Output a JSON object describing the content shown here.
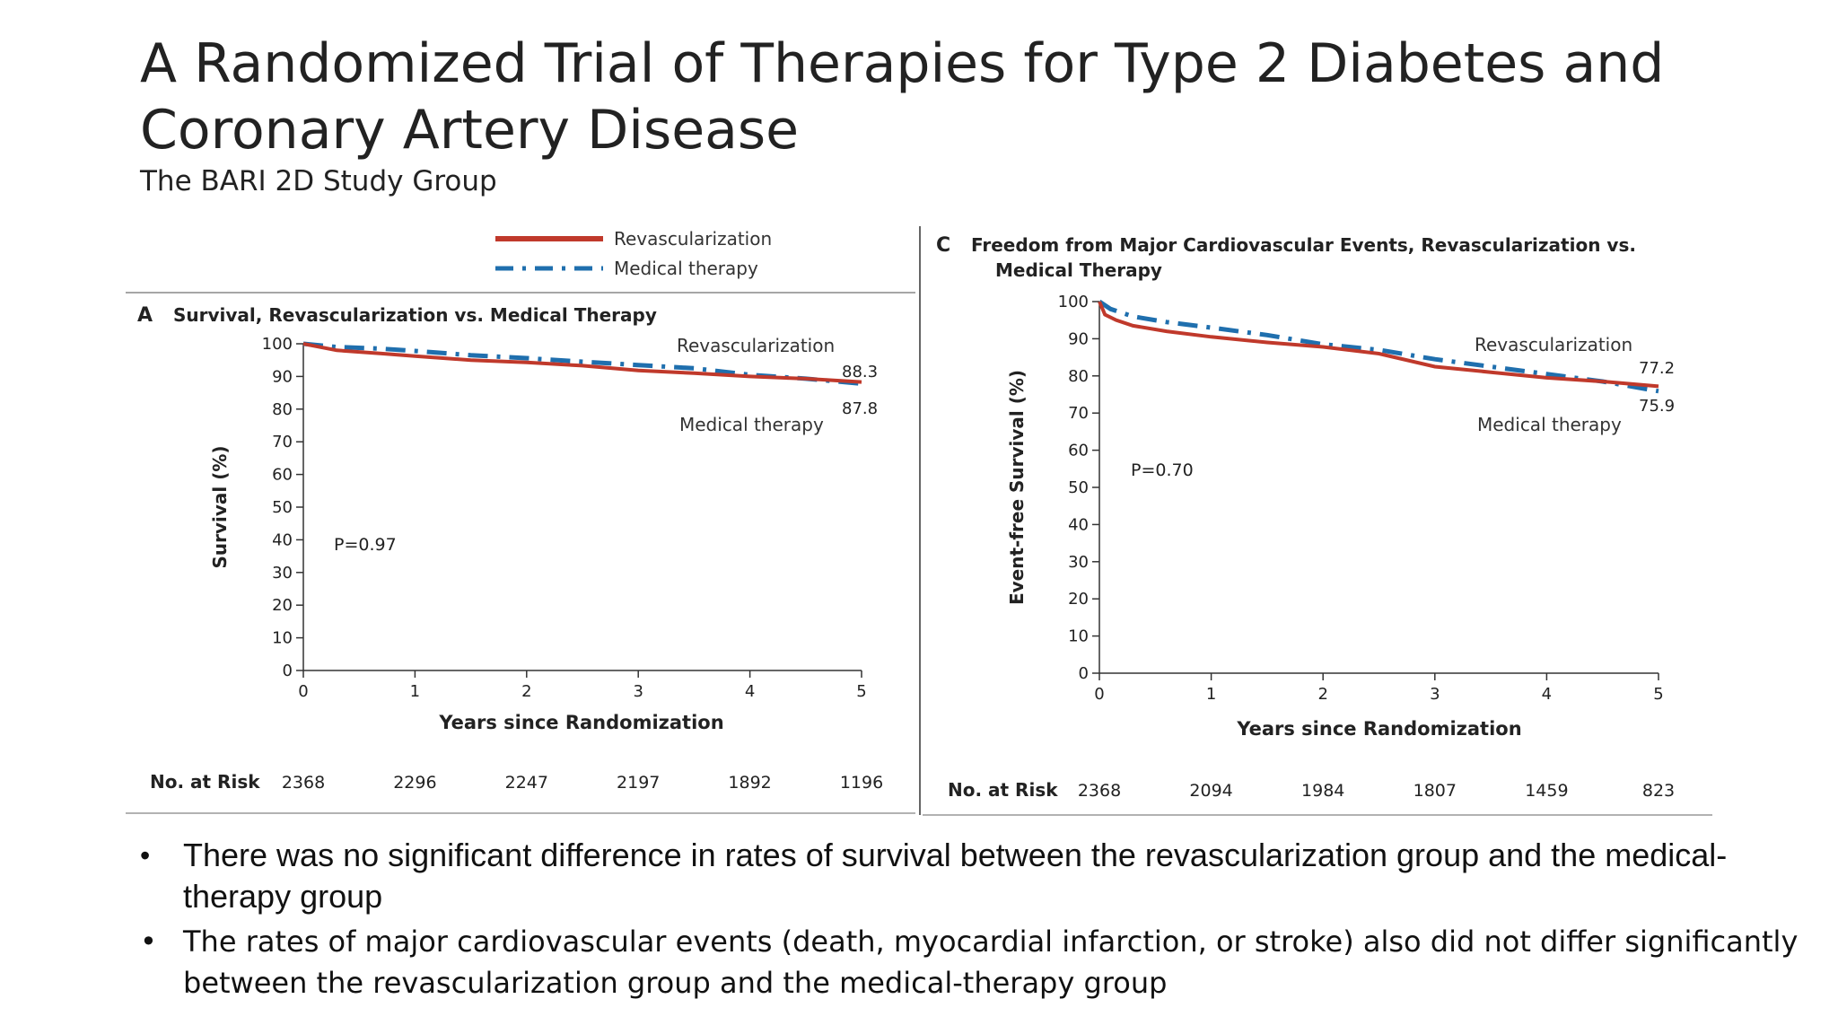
{
  "slide": {
    "title": "A Randomized Trial of Therapies for Type 2 Diabetes and Coronary Artery Disease",
    "subtitle": "The BARI 2D Study Group",
    "bullets": [
      "There was no significant difference in rates of survival between the revascularization group and the medical-therapy group",
      "The rates of major cardiovascular events (death, myocardial infarction, or stroke) also did not differ significantly between the revascularization group and the medical-therapy group"
    ]
  },
  "legend": {
    "items": [
      {
        "label": "Revascularization",
        "color": "#c0392b",
        "style": "solid"
      },
      {
        "label": "Medical therapy",
        "color": "#1f6fae",
        "style": "dash-dot"
      }
    ]
  },
  "chart_data": [
    {
      "type": "line",
      "panel_letter": "A",
      "title": "Survival, Revascularization vs. Medical Therapy",
      "xlabel": "Years since Randomization",
      "ylabel": "Survival (%)",
      "xlim": [
        0,
        5
      ],
      "ylim": [
        0,
        100
      ],
      "x_ticks": [
        "0",
        "1",
        "2",
        "3",
        "4",
        "5"
      ],
      "y_ticks": [
        "0",
        "10",
        "20",
        "30",
        "40",
        "50",
        "60",
        "70",
        "80",
        "90",
        "100"
      ],
      "p_value": "P=0.97",
      "series": [
        {
          "name": "Revascularization",
          "color": "#c0392b",
          "x": [
            0,
            0.3,
            0.7,
            1,
            1.5,
            2,
            2.5,
            3,
            3.5,
            4,
            4.5,
            5
          ],
          "y": [
            100,
            98,
            97,
            96.2,
            95,
            94.3,
            93.3,
            91.8,
            91,
            90,
            89.3,
            88.3
          ]
        },
        {
          "name": "Medical therapy",
          "color": "#1f6fae",
          "x": [
            0,
            0.3,
            0.7,
            1,
            1.5,
            2,
            2.5,
            3,
            3.5,
            4,
            4.5,
            5
          ],
          "y": [
            100,
            99,
            98.5,
            97.8,
            96.5,
            95.6,
            94.5,
            93.5,
            92.5,
            90.5,
            89.3,
            87.8
          ]
        }
      ],
      "end_labels": [
        "88.3",
        "87.8"
      ],
      "curve_labels": [
        "Revascularization",
        "Medical therapy"
      ],
      "risk_label": "No. at Risk",
      "at_risk": [
        "2368",
        "2296",
        "2247",
        "2197",
        "1892",
        "1196"
      ]
    },
    {
      "type": "line",
      "panel_letter": "C",
      "title": "Freedom from Major Cardiovascular Events, Revascularization vs. Medical Therapy",
      "xlabel": "Years since Randomization",
      "ylabel": "Event-free Survival (%)",
      "xlim": [
        0,
        5
      ],
      "ylim": [
        0,
        100
      ],
      "x_ticks": [
        "0",
        "1",
        "2",
        "3",
        "4",
        "5"
      ],
      "y_ticks": [
        "0",
        "10",
        "20",
        "30",
        "40",
        "50",
        "60",
        "70",
        "80",
        "90",
        "100"
      ],
      "p_value": "P=0.70",
      "series": [
        {
          "name": "Revascularization",
          "color": "#c0392b",
          "x": [
            0,
            0.05,
            0.15,
            0.3,
            0.6,
            1,
            1.5,
            2,
            2.5,
            3,
            3.5,
            4,
            4.5,
            5
          ],
          "y": [
            100,
            96.5,
            95,
            93.5,
            92,
            90.5,
            89,
            87.8,
            86,
            82.5,
            81,
            79.5,
            78.5,
            77.2
          ]
        },
        {
          "name": "Medical therapy",
          "color": "#1f6fae",
          "x": [
            0,
            0.1,
            0.3,
            0.6,
            1,
            1.5,
            2,
            2.5,
            3,
            3.5,
            4,
            4.5,
            5
          ],
          "y": [
            100,
            98,
            96,
            94.5,
            93,
            91,
            88.5,
            87,
            84.5,
            82.5,
            80.5,
            78.5,
            75.9
          ]
        }
      ],
      "end_labels": [
        "77.2",
        "75.9"
      ],
      "curve_labels": [
        "Revascularization",
        "Medical therapy"
      ],
      "risk_label": "No. at Risk",
      "at_risk": [
        "2368",
        "2094",
        "1984",
        "1807",
        "1459",
        "823"
      ]
    }
  ]
}
